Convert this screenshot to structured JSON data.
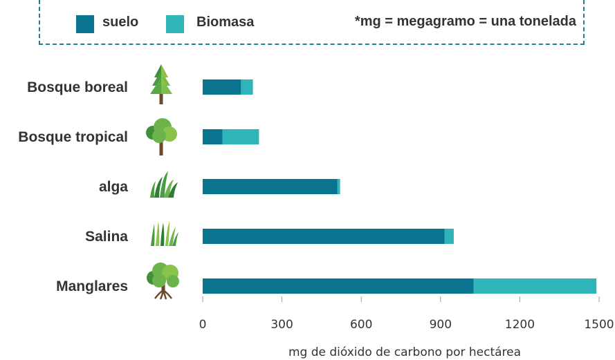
{
  "legend": {
    "items": [
      {
        "label": "suelo",
        "color": "#0a7390"
      },
      {
        "label": "Biomasa",
        "color": "#2fb5b8"
      }
    ],
    "note": "*mg = megagramo = una tonelada"
  },
  "chart_data": {
    "type": "bar",
    "orientation": "horizontal",
    "stacked": true,
    "categories": [
      "Bosque boreal",
      "Bosque tropical",
      "alga",
      "Salina",
      "Manglares"
    ],
    "category_icons": [
      "pine-tree-icon",
      "round-tree-icon",
      "seagrass-icon",
      "marsh-grass-icon",
      "mangrove-tree-icon"
    ],
    "series": [
      {
        "name": "suelo",
        "color": "#0a7390",
        "values": [
          145,
          75,
          510,
          915,
          1025
        ]
      },
      {
        "name": "Biomasa",
        "color": "#2fb5b8",
        "values": [
          45,
          138,
          10,
          35,
          465
        ]
      }
    ],
    "xlim": [
      0,
      1500
    ],
    "xticks": [
      "0",
      "300",
      "600",
      "900",
      "1200",
      "1500"
    ],
    "xlabel": "mg de dióxido de carbono por hectárea",
    "grid": false,
    "legend_position": "top"
  }
}
